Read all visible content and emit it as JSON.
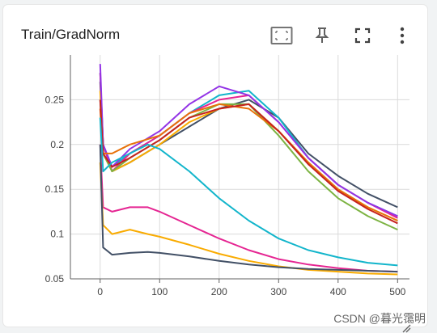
{
  "card": {
    "title": "Train/GradNorm",
    "toolbar": [
      {
        "name": "fit-domain-icon",
        "label": "fit to data"
      },
      {
        "name": "pin-icon",
        "label": "pin"
      },
      {
        "name": "fullscreen-icon",
        "label": "fullscreen"
      },
      {
        "name": "more-options-icon",
        "label": "more"
      }
    ]
  },
  "watermark": "CSDN @暮光霭明",
  "chart_data": {
    "type": "line",
    "title": "Train/GradNorm",
    "xlabel": "",
    "ylabel": "",
    "xlim": [
      -50,
      520
    ],
    "ylim": [
      0.05,
      0.3
    ],
    "x_ticks": [
      0,
      100,
      200,
      300,
      400,
      500
    ],
    "x_tick_labels": [
      "0",
      "100",
      "200",
      "300",
      "400",
      "500"
    ],
    "y_ticks": [
      0.05,
      0.1,
      0.15,
      0.2,
      0.25
    ],
    "y_tick_labels": [
      "0.05",
      "0.1",
      "0.15",
      "0.2",
      "0.25"
    ],
    "grid": true,
    "series": [
      {
        "color": "#425066",
        "points": [
          [
            0,
            0.27
          ],
          [
            5,
            0.2
          ],
          [
            20,
            0.17
          ],
          [
            50,
            0.18
          ],
          [
            100,
            0.2
          ],
          [
            150,
            0.22
          ],
          [
            200,
            0.24
          ],
          [
            250,
            0.25
          ],
          [
            300,
            0.23
          ],
          [
            350,
            0.19
          ],
          [
            400,
            0.165
          ],
          [
            450,
            0.145
          ],
          [
            500,
            0.13
          ]
        ]
      },
      {
        "color": "#12b5cb",
        "points": [
          [
            0,
            0.28
          ],
          [
            5,
            0.2
          ],
          [
            20,
            0.175
          ],
          [
            50,
            0.19
          ],
          [
            100,
            0.21
          ],
          [
            150,
            0.235
          ],
          [
            200,
            0.255
          ],
          [
            250,
            0.26
          ],
          [
            300,
            0.23
          ],
          [
            350,
            0.185
          ],
          [
            400,
            0.155
          ],
          [
            450,
            0.135
          ],
          [
            500,
            0.12
          ]
        ]
      },
      {
        "color": "#e52592",
        "points": [
          [
            0,
            0.28
          ],
          [
            5,
            0.2
          ],
          [
            20,
            0.17
          ],
          [
            50,
            0.19
          ],
          [
            100,
            0.21
          ],
          [
            150,
            0.235
          ],
          [
            200,
            0.25
          ],
          [
            250,
            0.255
          ],
          [
            300,
            0.225
          ],
          [
            350,
            0.185
          ],
          [
            400,
            0.155
          ],
          [
            450,
            0.135
          ],
          [
            500,
            0.118
          ]
        ]
      },
      {
        "color": "#f9ab00",
        "points": [
          [
            0,
            0.26
          ],
          [
            5,
            0.19
          ],
          [
            20,
            0.17
          ],
          [
            50,
            0.18
          ],
          [
            100,
            0.2
          ],
          [
            150,
            0.225
          ],
          [
            200,
            0.24
          ],
          [
            250,
            0.245
          ],
          [
            300,
            0.215
          ],
          [
            350,
            0.18
          ],
          [
            400,
            0.15
          ],
          [
            450,
            0.13
          ],
          [
            500,
            0.115
          ]
        ]
      },
      {
        "color": "#9334e6",
        "points": [
          [
            0,
            0.29
          ],
          [
            5,
            0.2
          ],
          [
            20,
            0.175
          ],
          [
            50,
            0.195
          ],
          [
            100,
            0.215
          ],
          [
            150,
            0.245
          ],
          [
            200,
            0.265
          ],
          [
            250,
            0.255
          ],
          [
            300,
            0.225
          ],
          [
            350,
            0.185
          ],
          [
            400,
            0.155
          ],
          [
            450,
            0.135
          ],
          [
            500,
            0.12
          ]
        ]
      },
      {
        "color": "#7cb342",
        "points": [
          [
            0,
            0.25
          ],
          [
            5,
            0.19
          ],
          [
            20,
            0.17
          ],
          [
            50,
            0.185
          ],
          [
            100,
            0.205
          ],
          [
            150,
            0.23
          ],
          [
            200,
            0.245
          ],
          [
            250,
            0.245
          ],
          [
            300,
            0.21
          ],
          [
            350,
            0.17
          ],
          [
            400,
            0.14
          ],
          [
            450,
            0.12
          ],
          [
            500,
            0.105
          ]
        ]
      },
      {
        "color": "#e8710a",
        "points": [
          [
            0,
            0.24
          ],
          [
            5,
            0.19
          ],
          [
            20,
            0.19
          ],
          [
            50,
            0.2
          ],
          [
            100,
            0.21
          ],
          [
            150,
            0.235
          ],
          [
            200,
            0.245
          ],
          [
            250,
            0.24
          ],
          [
            300,
            0.215
          ],
          [
            350,
            0.18
          ],
          [
            400,
            0.15
          ],
          [
            450,
            0.13
          ],
          [
            500,
            0.115
          ]
        ]
      },
      {
        "color": "#c5221f",
        "points": [
          [
            0,
            0.25
          ],
          [
            5,
            0.19
          ],
          [
            20,
            0.175
          ],
          [
            50,
            0.185
          ],
          [
            100,
            0.205
          ],
          [
            150,
            0.23
          ],
          [
            200,
            0.24
          ],
          [
            250,
            0.245
          ],
          [
            300,
            0.215
          ],
          [
            350,
            0.178
          ],
          [
            400,
            0.148
          ],
          [
            450,
            0.128
          ],
          [
            500,
            0.112
          ]
        ]
      },
      {
        "color": "#12b5cb",
        "points": [
          [
            0,
            0.23
          ],
          [
            5,
            0.17
          ],
          [
            20,
            0.18
          ],
          [
            50,
            0.19
          ],
          [
            80,
            0.2
          ],
          [
            100,
            0.195
          ],
          [
            150,
            0.17
          ],
          [
            200,
            0.14
          ],
          [
            250,
            0.115
          ],
          [
            300,
            0.095
          ],
          [
            350,
            0.082
          ],
          [
            400,
            0.074
          ],
          [
            450,
            0.068
          ],
          [
            500,
            0.065
          ]
        ]
      },
      {
        "color": "#e52592",
        "points": [
          [
            0,
            0.2
          ],
          [
            5,
            0.13
          ],
          [
            20,
            0.125
          ],
          [
            50,
            0.13
          ],
          [
            80,
            0.13
          ],
          [
            100,
            0.125
          ],
          [
            150,
            0.11
          ],
          [
            200,
            0.095
          ],
          [
            250,
            0.082
          ],
          [
            300,
            0.072
          ],
          [
            350,
            0.066
          ],
          [
            400,
            0.062
          ],
          [
            450,
            0.059
          ],
          [
            500,
            0.058
          ]
        ]
      },
      {
        "color": "#f9ab00",
        "points": [
          [
            0,
            0.18
          ],
          [
            5,
            0.11
          ],
          [
            20,
            0.1
          ],
          [
            50,
            0.105
          ],
          [
            80,
            0.1
          ],
          [
            100,
            0.097
          ],
          [
            150,
            0.088
          ],
          [
            200,
            0.078
          ],
          [
            250,
            0.07
          ],
          [
            300,
            0.064
          ],
          [
            350,
            0.06
          ],
          [
            400,
            0.058
          ],
          [
            450,
            0.056
          ],
          [
            500,
            0.055
          ]
        ]
      },
      {
        "color": "#425066",
        "points": [
          [
            0,
            0.2
          ],
          [
            5,
            0.085
          ],
          [
            20,
            0.077
          ],
          [
            50,
            0.079
          ],
          [
            80,
            0.08
          ],
          [
            100,
            0.079
          ],
          [
            150,
            0.075
          ],
          [
            200,
            0.07
          ],
          [
            250,
            0.066
          ],
          [
            300,
            0.063
          ],
          [
            350,
            0.061
          ],
          [
            400,
            0.06
          ],
          [
            450,
            0.059
          ],
          [
            500,
            0.058
          ]
        ]
      }
    ]
  }
}
